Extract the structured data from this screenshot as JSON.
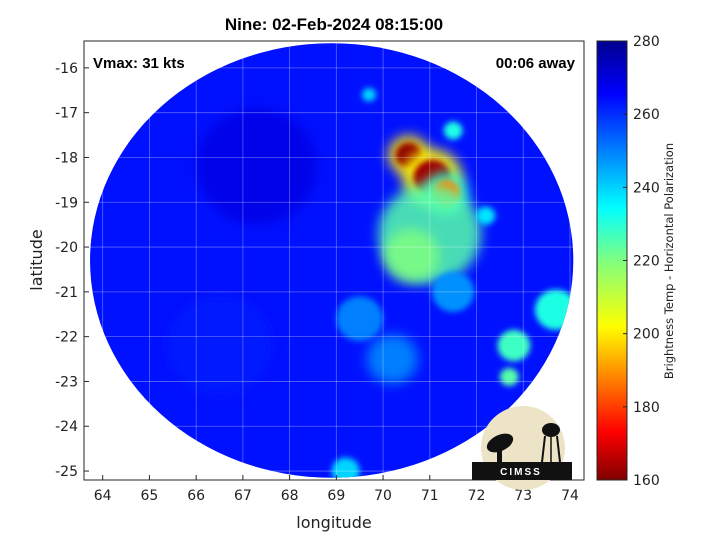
{
  "chart_data": {
    "type": "heatmap",
    "title": "Nine: 02-Feb-2024 08:15:00",
    "xlabel": "longitude",
    "ylabel": "latitude",
    "xlim": [
      63.6,
      74.3
    ],
    "ylim": [
      -25.2,
      -15.4
    ],
    "x_ticks": [
      "64",
      "65",
      "66",
      "67",
      "68",
      "69",
      "70",
      "71",
      "72",
      "73",
      "74"
    ],
    "y_ticks": [
      "-16",
      "-17",
      "-18",
      "-19",
      "-20",
      "-21",
      "-22",
      "-23",
      "-24",
      "-25"
    ],
    "grid": true,
    "colorbar": {
      "label": "Brightness Temp - Horizontal Polarization",
      "range": [
        160,
        280
      ],
      "ticks": [
        "280",
        "260",
        "240",
        "220",
        "200",
        "180",
        "160"
      ],
      "colormap": "jet"
    },
    "swath_center": {
      "lon": 68.9,
      "lat": -20.3
    },
    "swath_radius_deg_lat": 4.85,
    "background_value": 263,
    "features": [
      {
        "lon": 70.55,
        "lat": -17.95,
        "value": 162,
        "extent_deg": 0.28
      },
      {
        "lon": 71.05,
        "lat": -18.45,
        "value": 164,
        "extent_deg": 0.4
      },
      {
        "lon": 71.35,
        "lat": -18.8,
        "value": 190,
        "extent_deg": 0.3
      },
      {
        "lon": 71.0,
        "lat": -19.7,
        "value": 225,
        "extent_deg": 1.1
      },
      {
        "lon": 70.6,
        "lat": -20.2,
        "value": 220,
        "extent_deg": 0.6
      },
      {
        "lon": 71.5,
        "lat": -17.4,
        "value": 232,
        "extent_deg": 0.2
      },
      {
        "lon": 69.7,
        "lat": -16.6,
        "value": 240,
        "extent_deg": 0.15
      },
      {
        "lon": 72.8,
        "lat": -22.2,
        "value": 228,
        "extent_deg": 0.35
      },
      {
        "lon": 72.7,
        "lat": -22.9,
        "value": 225,
        "extent_deg": 0.2
      },
      {
        "lon": 73.7,
        "lat": -21.4,
        "value": 232,
        "extent_deg": 0.45
      },
      {
        "lon": 70.2,
        "lat": -22.5,
        "value": 248,
        "extent_deg": 0.55
      },
      {
        "lon": 69.5,
        "lat": -21.6,
        "value": 250,
        "extent_deg": 0.5
      },
      {
        "lon": 71.5,
        "lat": -21.0,
        "value": 248,
        "extent_deg": 0.45
      },
      {
        "lon": 72.2,
        "lat": -19.3,
        "value": 238,
        "extent_deg": 0.2
      },
      {
        "lon": 69.2,
        "lat": -25.0,
        "value": 240,
        "extent_deg": 0.3
      },
      {
        "lon": 66.5,
        "lat": -22.2,
        "value": 262,
        "extent_deg": 1.1
      },
      {
        "lon": 67.3,
        "lat": -18.2,
        "value": 268,
        "extent_deg": 1.3
      }
    ]
  },
  "annotations": {
    "vmax": "Vmax: 31 kts",
    "away": "00:06 away"
  },
  "logo": {
    "text": "CIMSS"
  }
}
